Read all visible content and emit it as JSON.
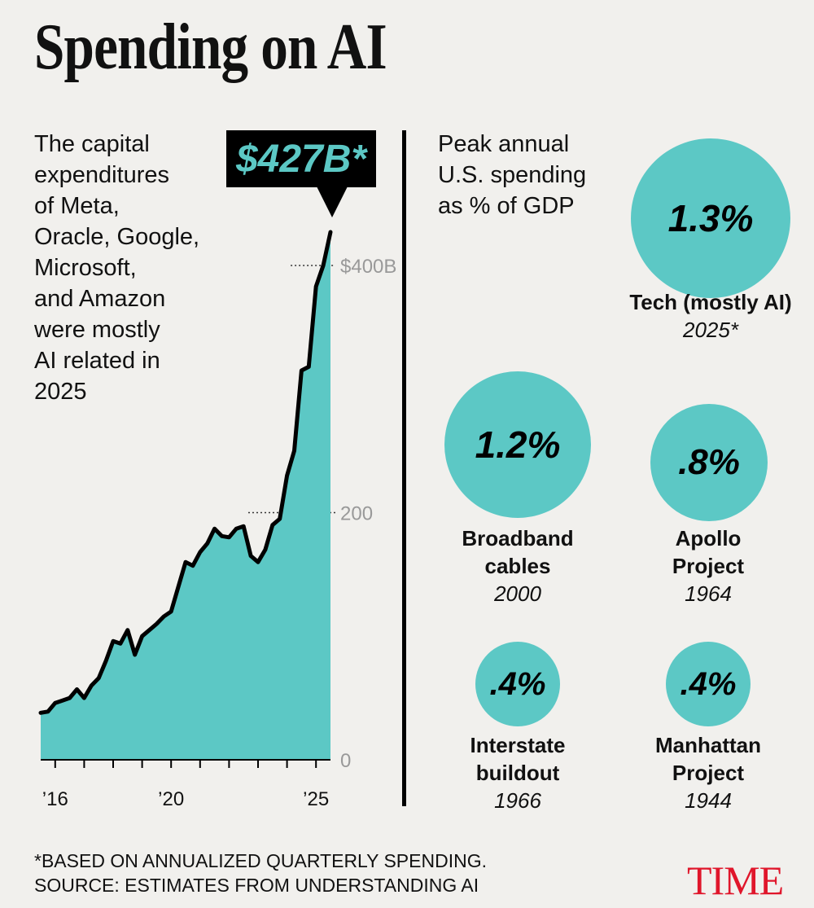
{
  "title": "Spending on AI",
  "intro": "The capital\nexpenditures\nof Meta,\nOracle, Google,\nMicrosoft,\nand Amazon\nwere mostly\nAI related in\n2025",
  "callout": "$427B*",
  "chart_data": {
    "type": "area",
    "title": "",
    "x": [
      2015.5,
      2015.75,
      2016,
      2016.25,
      2016.5,
      2016.75,
      2017,
      2017.25,
      2017.5,
      2017.75,
      2018,
      2018.25,
      2018.5,
      2018.75,
      2019,
      2019.25,
      2019.5,
      2019.75,
      2020,
      2020.25,
      2020.5,
      2020.75,
      2021,
      2021.25,
      2021.5,
      2021.75,
      2022,
      2022.25,
      2022.5,
      2022.75,
      2023,
      2023.25,
      2023.5,
      2023.75,
      2024,
      2024.25,
      2024.5,
      2024.75,
      2025,
      2025.25,
      2025.5
    ],
    "values": [
      38,
      39,
      46,
      48,
      50,
      57,
      50,
      60,
      66,
      80,
      96,
      94,
      105,
      85,
      100,
      105,
      110,
      116,
      120,
      140,
      160,
      157,
      168,
      175,
      187,
      181,
      180,
      187,
      189,
      165,
      160,
      170,
      190,
      195,
      230,
      250,
      315,
      318,
      383,
      400,
      427
    ],
    "yticks": [
      0,
      200,
      400
    ],
    "ytick_labels": [
      "0",
      "200",
      "$400B"
    ],
    "xtick_labels": [
      {
        "x": 2016,
        "label": "’16"
      },
      {
        "x": 2020,
        "label": "’20"
      },
      {
        "x": 2025,
        "label": "’25"
      }
    ],
    "xlim": [
      2015.5,
      2025.5
    ],
    "ylim": [
      0,
      427
    ],
    "fill_color": "#5cc8c5",
    "line_color": "#000000"
  },
  "peak": {
    "heading": "Peak annual\nU.S. spending\nas % of GDP",
    "bubbles": [
      {
        "value_label": "1.3%",
        "value": 1.3,
        "label": "Tech (mostly AI)",
        "year": "2025*"
      },
      {
        "value_label": "1.2%",
        "value": 1.2,
        "label": "Broadband\ncables",
        "year": "2000"
      },
      {
        "value_label": ".8%",
        "value": 0.8,
        "label": "Apollo\nProject",
        "year": "1964"
      },
      {
        "value_label": ".4%",
        "value": 0.4,
        "label": "Interstate\nbuildout",
        "year": "1966"
      },
      {
        "value_label": ".4%",
        "value": 0.4,
        "label": "Manhattan\nProject",
        "year": "1944"
      }
    ]
  },
  "footnote": {
    "line1": "*Based on annualized quarterly spending.",
    "line2": "Source: Estimates from Understanding AI"
  },
  "logo": "TIME",
  "colors": {
    "accent": "#5cc8c5",
    "background": "#f1f0ed",
    "logo": "#e0162b"
  }
}
